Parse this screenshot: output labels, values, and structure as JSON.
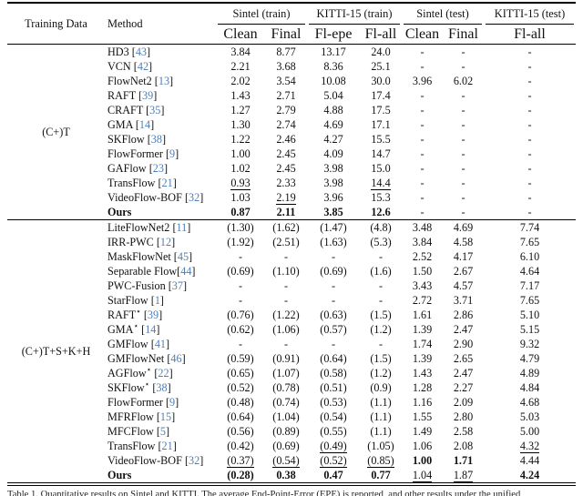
{
  "table": {
    "header": {
      "col_training": "Training Data",
      "col_method": "Method",
      "groups": [
        {
          "label": "Sintel (train)",
          "subs": [
            "Clean",
            "Final"
          ]
        },
        {
          "label": "KITTI-15 (train)",
          "subs": [
            "Fl-epe",
            "Fl-all"
          ]
        },
        {
          "label": "Sintel (test)",
          "subs": [
            "Clean",
            "Final"
          ]
        },
        {
          "label": "KITTI-15 (test)",
          "subs": [
            "Fl-all"
          ]
        }
      ]
    },
    "groups": [
      {
        "training_data": "(C+)T",
        "rows": [
          {
            "method": "HD3",
            "ref": "43",
            "vals": [
              "3.84",
              "8.77",
              "13.17",
              "24.0",
              "-",
              "-",
              "-"
            ],
            "fmt": [
              "",
              "",
              "",
              "",
              "",
              "",
              ""
            ]
          },
          {
            "method": "VCN",
            "ref": "42",
            "vals": [
              "2.21",
              "3.68",
              "8.36",
              "25.1",
              "-",
              "-",
              "-"
            ],
            "fmt": [
              "",
              "",
              "",
              "",
              "",
              "",
              ""
            ]
          },
          {
            "method": "FlowNet2",
            "ref": "13",
            "vals": [
              "2.02",
              "3.54",
              "10.08",
              "30.0",
              "3.96",
              "6.02",
              "-"
            ],
            "fmt": [
              "",
              "",
              "",
              "",
              "",
              "",
              ""
            ]
          },
          {
            "method": "RAFT",
            "ref": "39",
            "vals": [
              "1.43",
              "2.71",
              "5.04",
              "17.4",
              "-",
              "-",
              "-"
            ],
            "fmt": [
              "",
              "",
              "",
              "",
              "",
              "",
              ""
            ]
          },
          {
            "method": "CRAFT",
            "ref": "35",
            "vals": [
              "1.27",
              "2.79",
              "4.88",
              "17.5",
              "-",
              "-",
              "-"
            ],
            "fmt": [
              "",
              "",
              "",
              "",
              "",
              "",
              ""
            ]
          },
          {
            "method": "GMA",
            "ref": "14",
            "vals": [
              "1.30",
              "2.74",
              "4.69",
              "17.1",
              "-",
              "-",
              "-"
            ],
            "fmt": [
              "",
              "",
              "",
              "",
              "",
              "",
              ""
            ]
          },
          {
            "method": "SKFlow",
            "ref": "38",
            "vals": [
              "1.22",
              "2.46",
              "4.27",
              "15.5",
              "-",
              "-",
              "-"
            ],
            "fmt": [
              "",
              "",
              "",
              "",
              "",
              "",
              ""
            ]
          },
          {
            "method": "FlowFormer",
            "ref": "9",
            "vals": [
              "1.00",
              "2.45",
              "4.09",
              "14.7",
              "-",
              "-",
              "-"
            ],
            "fmt": [
              "",
              "",
              "",
              "",
              "",
              "",
              ""
            ]
          },
          {
            "method": "GAFlow",
            "ref": "23",
            "vals": [
              "1.02",
              "2.45",
              "3.98",
              "15.0",
              "-",
              "-",
              "-"
            ],
            "fmt": [
              "",
              "",
              "",
              "",
              "",
              "",
              ""
            ]
          },
          {
            "method": "TransFlow",
            "ref": "21",
            "vals": [
              "0.93",
              "2.33",
              "3.98",
              "14.4",
              "-",
              "-",
              "-"
            ],
            "fmt": [
              "u",
              "",
              "",
              "u",
              "",
              "",
              ""
            ]
          },
          {
            "method": "VideoFlow-BOF",
            "ref": "32",
            "vals": [
              "1.03",
              "2.19",
              "3.96",
              "15.3",
              "-",
              "-",
              "-"
            ],
            "fmt": [
              "",
              "u",
              "",
              "",
              "",
              "",
              ""
            ]
          },
          {
            "method": "Ours",
            "bold": true,
            "vals": [
              "0.87",
              "2.11",
              "3.85",
              "12.6",
              "-",
              "-",
              "-"
            ],
            "fmt": [
              "b",
              "b",
              "b",
              "b",
              "",
              "",
              ""
            ]
          }
        ]
      },
      {
        "training_data": "(C+)T+S+K+H",
        "rows": [
          {
            "method": "LiteFlowNet2",
            "ref": "11",
            "vals": [
              "(1.30)",
              "(1.62)",
              "(1.47)",
              "(4.8)",
              "3.48",
              "4.69",
              "7.74"
            ],
            "fmt": [
              "",
              "",
              "",
              "",
              "",
              "",
              ""
            ]
          },
          {
            "method": "IRR-PWC",
            "ref": "12",
            "vals": [
              "(1.92)",
              "(2.51)",
              "(1.63)",
              "(5.3)",
              "3.84",
              "4.58",
              "7.65"
            ],
            "fmt": [
              "",
              "",
              "",
              "",
              "",
              "",
              ""
            ]
          },
          {
            "method": "MaskFlowNet",
            "ref": "45",
            "vals": [
              "-",
              "-",
              "-",
              "-",
              "2.52",
              "4.17",
              "6.10"
            ],
            "fmt": [
              "",
              "",
              "",
              "",
              "",
              "",
              ""
            ]
          },
          {
            "method": "Separable Flow",
            "ref": "44",
            "tight": true,
            "vals": [
              "(0.69)",
              "(1.10)",
              "(0.69)",
              "(1.6)",
              "1.50",
              "2.67",
              "4.64"
            ],
            "fmt": [
              "",
              "",
              "",
              "",
              "",
              "",
              ""
            ]
          },
          {
            "method": "PWC-Fusion",
            "ref": "37",
            "vals": [
              "-",
              "-",
              "-",
              "-",
              "3.43",
              "4.57",
              "7.17"
            ],
            "fmt": [
              "",
              "",
              "",
              "",
              "",
              "",
              ""
            ]
          },
          {
            "method": "StarFlow",
            "ref": "1",
            "vals": [
              "-",
              "-",
              "-",
              "-",
              "2.72",
              "3.71",
              "7.65"
            ],
            "fmt": [
              "",
              "",
              "",
              "",
              "",
              "",
              ""
            ]
          },
          {
            "method": "RAFT",
            "star": "⋆",
            "ref": "39",
            "vals": [
              "(0.76)",
              "(1.22)",
              "(0.63)",
              "(1.5)",
              "1.61",
              "2.86",
              "5.10"
            ],
            "fmt": [
              "",
              "",
              "",
              "",
              "",
              "",
              ""
            ]
          },
          {
            "method": "GMA",
            "star": "⋆",
            "ref": "14",
            "vals": [
              "(0.62)",
              "(1.06)",
              "(0.57)",
              "(1.2)",
              "1.39",
              "2.47",
              "5.15"
            ],
            "fmt": [
              "",
              "",
              "",
              "",
              "",
              "",
              ""
            ]
          },
          {
            "method": "GMFlow",
            "ref": "41",
            "vals": [
              "-",
              "-",
              "-",
              "-",
              "1.74",
              "2.90",
              "9.32"
            ],
            "fmt": [
              "",
              "",
              "",
              "",
              "",
              "",
              ""
            ]
          },
          {
            "method": "GMFlowNet",
            "ref": "46",
            "vals": [
              "(0.59)",
              "(0.91)",
              "(0.64)",
              "(1.5)",
              "1.39",
              "2.65",
              "4.79"
            ],
            "fmt": [
              "",
              "",
              "",
              "",
              "",
              "",
              ""
            ]
          },
          {
            "method": "AGFlow",
            "star": "⋆",
            "ref": "22",
            "vals": [
              "(0.65)",
              "(1.07)",
              "(0.58)",
              "(1.2)",
              "1.43",
              "2.47",
              "4.89"
            ],
            "fmt": [
              "",
              "",
              "",
              "",
              "",
              "",
              ""
            ]
          },
          {
            "method": "SKFlow",
            "star": "⋆",
            "ref": "38",
            "vals": [
              "(0.52)",
              "(0.78)",
              "(0.51)",
              "(0.9)",
              "1.28",
              "2.27",
              "4.84"
            ],
            "fmt": [
              "",
              "",
              "",
              "",
              "",
              "",
              ""
            ]
          },
          {
            "method": "FlowFormer",
            "ref": "9",
            "vals": [
              "(0.48)",
              "(0.74)",
              "(0.53)",
              "(1.1)",
              "1.16",
              "2.09",
              "4.68"
            ],
            "fmt": [
              "",
              "",
              "",
              "",
              "",
              "",
              ""
            ]
          },
          {
            "method": "MFRFlow",
            "ref": "15",
            "vals": [
              "(0.64)",
              "(1.04)",
              "(0.54)",
              "(1.1)",
              "1.55",
              "2.80",
              "5.03"
            ],
            "fmt": [
              "",
              "",
              "",
              "",
              "",
              "",
              ""
            ]
          },
          {
            "method": "MFCFlow",
            "ref": "5",
            "vals": [
              "(0.56)",
              "(0.89)",
              "(0.55)",
              "(1.1)",
              "1.49",
              "2.58",
              "5.00"
            ],
            "fmt": [
              "",
              "",
              "",
              "",
              "",
              "",
              ""
            ]
          },
          {
            "method": "TransFlow",
            "ref": "21",
            "vals": [
              "(0.42)",
              "(0.69)",
              "(0.49)",
              "(1.05)",
              "1.06",
              "2.08",
              "4.32"
            ],
            "fmt": [
              "",
              "",
              "u",
              "",
              "",
              "",
              "u"
            ]
          },
          {
            "method": "VideoFlow-BOF",
            "ref": "32",
            "vals": [
              "(0.37)",
              "(0.54)",
              "(0.52)",
              "(0.85)",
              "1.00",
              "1.71",
              "4.44"
            ],
            "fmt": [
              "u",
              "u",
              "u",
              "u",
              "b",
              "b",
              ""
            ]
          },
          {
            "method": "Ours",
            "bold": true,
            "vals": [
              "(0.28)",
              "0.38",
              "0.47",
              "0.77",
              "1.04",
              "1.87",
              "4.24"
            ],
            "fmt": [
              "b",
              "b",
              "b",
              "b",
              "u",
              "u",
              "b"
            ]
          }
        ]
      }
    ],
    "caption_fragment": "Table 1. Quantitative results on Sintel and KITTI. The average End-Point-Error (EPE) is reported, and other results under the unified"
  },
  "colors": {
    "citation_blue": "#4d7fb8",
    "rule_black": "#000000"
  }
}
